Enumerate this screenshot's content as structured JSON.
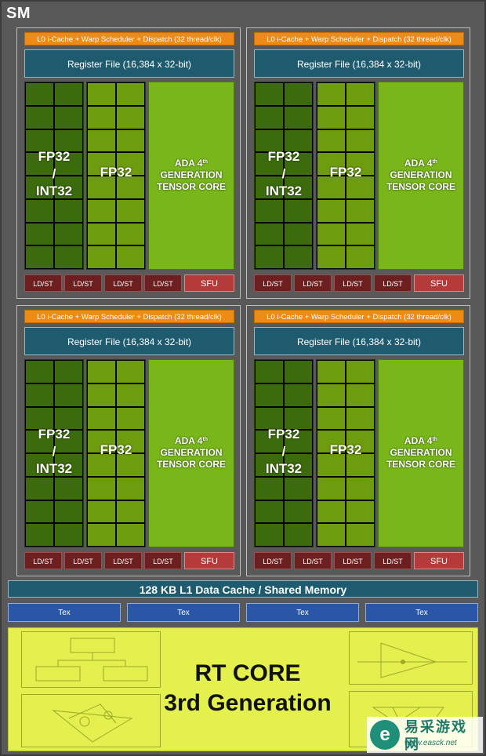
{
  "sm_label": "SM",
  "partition": {
    "l0_label": "L0 i-Cache + Warp Scheduler + Dispatch (32 thread/clk)",
    "register_file_label": "Register File (16,384 x 32-bit)",
    "fp32_int32_label": [
      "FP32",
      "/",
      "INT32"
    ],
    "fp32_label": "FP32",
    "tensor_label": {
      "line1": "ADA 4",
      "line1_sup": "th",
      "line2": "GENERATION",
      "line3": "TENSOR CORE"
    },
    "ldst_label": "LD/ST",
    "sfu_label": "SFU"
  },
  "l1_label": "128 KB L1 Data Cache / Shared Memory",
  "tex_labels": [
    "Tex",
    "Tex",
    "Tex",
    "Tex"
  ],
  "rt_core": {
    "line1": "RT CORE",
    "line2": "3rd Generation"
  },
  "watermark": {
    "logo_glyph": "e",
    "cn_text": "易采游戏网",
    "url": "www.easck.net"
  },
  "colors": {
    "l0_orange": "#ef8a14",
    "register_teal": "#1f5b6e",
    "fp32int_dark_green": "#3b6b0c",
    "fp32_green": "#6e9c0f",
    "tensor_green": "#78b61a",
    "ldst_maroon": "#6d1f1f",
    "sfu_red": "#b53a3a",
    "tex_blue": "#2a56a8",
    "rt_yellow": "#e3f04d"
  }
}
